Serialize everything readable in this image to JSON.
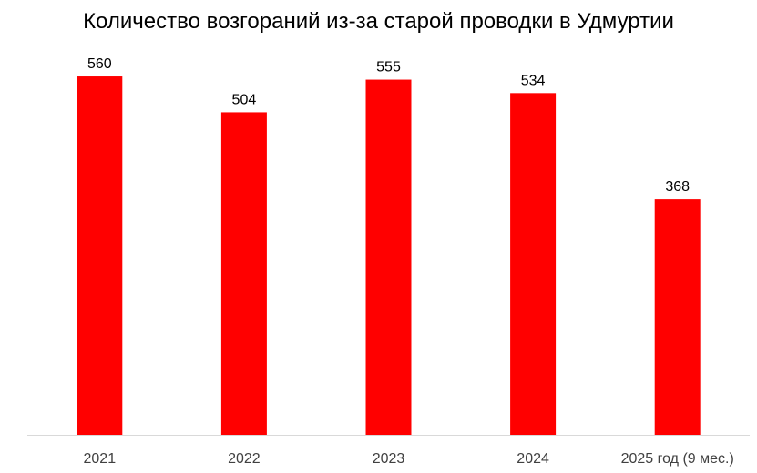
{
  "chart_data": {
    "type": "bar",
    "title": "Количество возгораний из-за старой проводки в Удмуртии",
    "categories": [
      "2021",
      "2022",
      "2023",
      "2024",
      "2025 год (9 мес.)"
    ],
    "series": [
      {
        "values": [
          560,
          504,
          555,
          534,
          368
        ]
      }
    ],
    "data_labels": [
      "560",
      "504",
      "555",
      "534",
      "368"
    ],
    "ylim": [
      0,
      600
    ],
    "grid": false,
    "legend": "none",
    "colors": {
      "bar": "#ff0000",
      "axis": "#d9d9d9",
      "tick_text": "#404040",
      "label_text": "#000000"
    }
  }
}
